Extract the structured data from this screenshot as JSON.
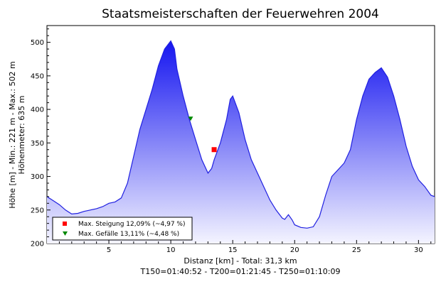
{
  "chart_data": {
    "type": "area",
    "title": "Staatsmeisterschaften der Feuerwehren 2004",
    "xlabel": "Distanz [km] - Total: 31,3 km",
    "xlabel2": "T150=01:40:52 - T200=01:21:45 - T250=01:10:09",
    "ylabel": "Höhe [m] - Min.: 221 m - Max.: 502 m",
    "ylabel2": "Höhenmeter: 635 m",
    "xlim": [
      0,
      31.3
    ],
    "ylim": [
      200,
      525
    ],
    "xticks": [
      5,
      10,
      15,
      20,
      25,
      30
    ],
    "yticks": [
      200,
      250,
      300,
      350,
      400,
      450,
      500
    ],
    "grid": false,
    "colors": {
      "fill_top": "#1515f0",
      "fill_bottom": "#f4f4ff",
      "line": "#2020e0"
    },
    "series": [
      {
        "x": [
          0,
          0.5,
          1,
          1.5,
          2,
          2.5,
          3,
          3.5,
          4,
          4.5,
          5,
          5.5,
          6,
          6.5,
          7,
          7.5,
          8,
          8.5,
          9,
          9.5,
          10,
          10.3,
          10.5,
          11,
          11.5,
          12,
          12.5,
          13,
          13.3,
          13.5,
          14,
          14.5,
          14.8,
          15,
          15.5,
          16,
          16.5,
          17,
          17.5,
          18,
          18.5,
          19,
          19.2,
          19.5,
          19.8,
          20,
          20.5,
          21,
          21.5,
          22,
          22.5,
          23,
          23.5,
          24,
          24.5,
          25,
          25.5,
          26,
          26.5,
          27,
          27.5,
          28,
          28.5,
          29,
          29.5,
          30,
          30.5,
          31,
          31.3
        ],
        "y": [
          270,
          264,
          258,
          250,
          244,
          245,
          248,
          250,
          252,
          255,
          260,
          262,
          268,
          290,
          330,
          370,
          400,
          430,
          465,
          490,
          502,
          490,
          460,
          420,
          385,
          355,
          325,
          305,
          312,
          325,
          350,
          385,
          415,
          420,
          395,
          355,
          325,
          305,
          285,
          265,
          250,
          238,
          236,
          243,
          235,
          228,
          224,
          223,
          225,
          240,
          272,
          300,
          310,
          320,
          340,
          385,
          420,
          445,
          455,
          462,
          448,
          420,
          385,
          345,
          315,
          295,
          285,
          272,
          270
        ]
      }
    ],
    "markers": [
      {
        "label": "Max. Steigung 12,09% (~4,97 %)",
        "x": 13.5,
        "y": 340,
        "shape": "square",
        "color": "#ff0000"
      },
      {
        "label": "Max. Gefälle 13,11% (~4,48 %)",
        "x": 11.6,
        "y": 386,
        "shape": "triangle-down",
        "color": "#008800"
      }
    ]
  }
}
